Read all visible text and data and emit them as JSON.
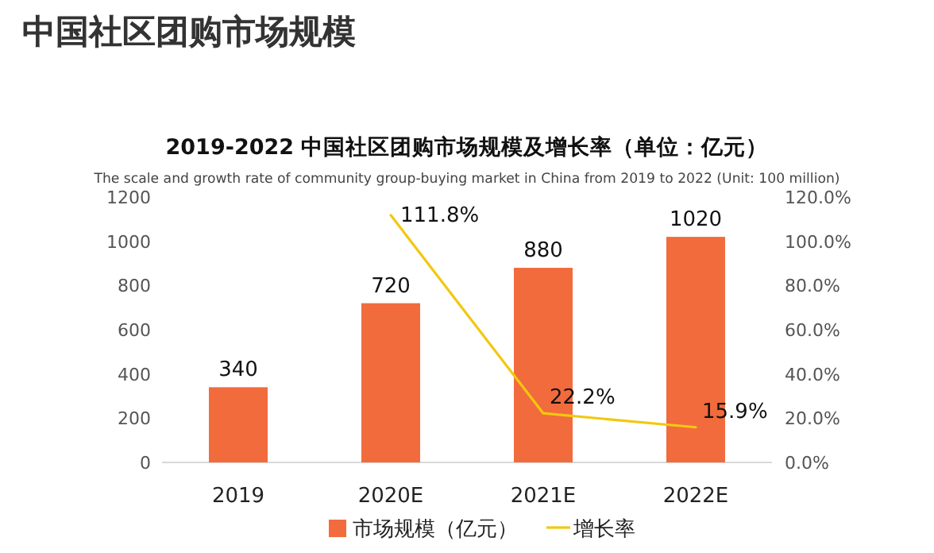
{
  "chart_data": {
    "type": "bar",
    "title": "中国社区团购市场规模",
    "subtitle": "2019-2022 中国社区团购市场规模及增长率（单位：亿元）",
    "annotations": [
      "The scale and growth rate of community group-buying market in China from 2019 to 2022 (Unit: 100 million)"
    ],
    "categories": [
      "2019",
      "2020E",
      "2021E",
      "2022E"
    ],
    "series": [
      {
        "name": "市场规模（亿元）",
        "color": "#f26b3d",
        "values": [
          340,
          720,
          880,
          1020
        ],
        "value_labels": [
          "340",
          "720",
          "880",
          "1020"
        ]
      },
      {
        "name": "增长率",
        "type": "line",
        "axis": "y2",
        "color": "#f2c80f",
        "values": [
          null,
          111.8,
          22.2,
          15.9
        ],
        "value_labels": [
          null,
          "111.8%",
          "22.2%",
          "15.9%"
        ]
      }
    ],
    "ylim": [
      0,
      1200
    ],
    "yticks": [
      0,
      200,
      400,
      600,
      800,
      1000,
      1200
    ],
    "y2lim": [
      0,
      120
    ],
    "y2ticks": [
      {
        "value": 0,
        "label": "0.0%"
      },
      {
        "value": 20,
        "label": "20.0%"
      },
      {
        "value": 40,
        "label": "40.0%"
      },
      {
        "value": 60,
        "label": "60.0%"
      },
      {
        "value": 80,
        "label": "80.0%"
      },
      {
        "value": 100,
        "label": "100.0%"
      },
      {
        "value": 120,
        "label": "120.0%"
      }
    ],
    "legend": "bottom",
    "grid": false,
    "marker": "none"
  }
}
